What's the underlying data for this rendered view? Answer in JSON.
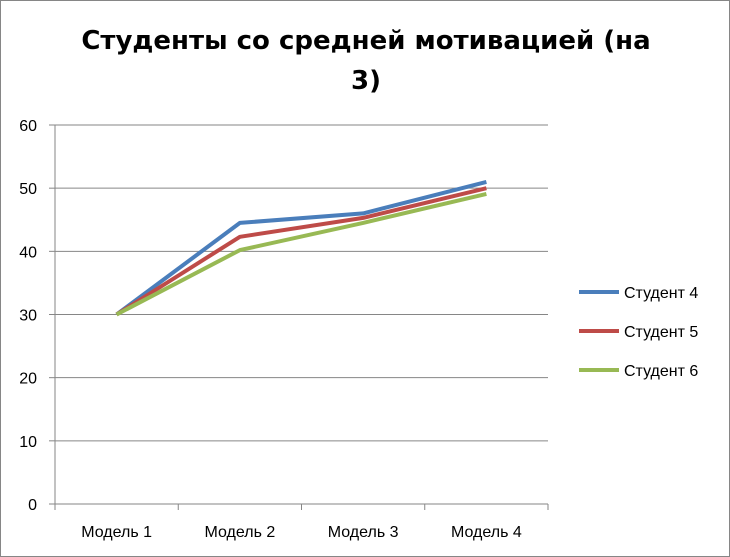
{
  "chart_data": {
    "type": "line",
    "title": "Студенты со средней мотивацией (на 3)",
    "xlabel": "",
    "ylabel": "",
    "categories": [
      "Модель 1",
      "Модель 2",
      "Модель 3",
      "Модель 4"
    ],
    "ylim": [
      0,
      60
    ],
    "yticks": [
      "0",
      "10",
      "20",
      "30",
      "40",
      "50",
      "60"
    ],
    "grid": true,
    "legend_position": "right",
    "series": [
      {
        "name": "Студент 4",
        "color": "#4A7EBB",
        "values": [
          30,
          44.5,
          46,
          51
        ]
      },
      {
        "name": "Студент 5",
        "color": "#BE4B48",
        "values": [
          30,
          42.3,
          45.3,
          50
        ]
      },
      {
        "name": "Студент 6",
        "color": "#98B954",
        "values": [
          30,
          40.2,
          44.5,
          49.1
        ]
      }
    ]
  }
}
